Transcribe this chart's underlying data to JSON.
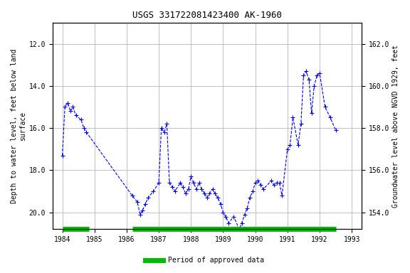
{
  "title": "USGS 331722081423400 AK-1960",
  "ylabel_left": "Depth to water level, feet below land\nsurface",
  "ylabel_right": "Groundwater level above NGVD 1929, feet",
  "ylim_left": [
    20.8,
    11.0
  ],
  "ylim_right": [
    153.2,
    163.0
  ],
  "xlim": [
    1983.7,
    1993.3
  ],
  "yticks_left": [
    12.0,
    14.0,
    16.0,
    18.0,
    20.0
  ],
  "yticks_right": [
    154.0,
    156.0,
    158.0,
    160.0,
    162.0
  ],
  "xticks": [
    1984,
    1985,
    1986,
    1987,
    1988,
    1989,
    1990,
    1991,
    1992,
    1993
  ],
  "background_color": "#ffffff",
  "line_color": "#0000ff",
  "legend_label": "Period of approved data",
  "legend_color": "#00bb00",
  "x_data": [
    1984.0,
    1984.08,
    1984.17,
    1984.25,
    1984.33,
    1984.42,
    1984.58,
    1984.67,
    1984.75,
    1986.17,
    1986.33,
    1986.42,
    1986.5,
    1986.58,
    1986.67,
    1986.83,
    1987.0,
    1987.08,
    1987.17,
    1987.25,
    1987.33,
    1987.42,
    1987.5,
    1987.67,
    1987.75,
    1987.83,
    1987.92,
    1988.0,
    1988.08,
    1988.17,
    1988.25,
    1988.33,
    1988.42,
    1988.5,
    1988.58,
    1988.67,
    1988.75,
    1988.83,
    1988.92,
    1989.0,
    1989.08,
    1989.17,
    1989.33,
    1989.5,
    1989.58,
    1989.67,
    1989.75,
    1989.83,
    1989.92,
    1990.0,
    1990.08,
    1990.17,
    1990.25,
    1990.5,
    1990.58,
    1990.67,
    1990.75,
    1990.83,
    1991.0,
    1991.08,
    1991.17,
    1991.33,
    1991.42,
    1991.5,
    1991.58,
    1991.67,
    1991.75,
    1991.83,
    1991.92,
    1992.0,
    1992.17,
    1992.33,
    1992.5
  ],
  "y_data": [
    17.3,
    15.0,
    14.8,
    15.2,
    15.0,
    15.4,
    15.6,
    16.0,
    16.2,
    19.2,
    19.5,
    20.1,
    19.9,
    19.6,
    19.3,
    19.0,
    18.6,
    16.0,
    16.2,
    15.8,
    18.6,
    18.8,
    19.0,
    18.6,
    18.8,
    19.1,
    18.9,
    18.3,
    18.6,
    18.9,
    18.6,
    18.9,
    19.1,
    19.3,
    19.1,
    18.9,
    19.1,
    19.3,
    19.6,
    20.0,
    20.2,
    20.5,
    20.2,
    20.8,
    20.5,
    20.1,
    19.8,
    19.3,
    19.0,
    18.6,
    18.5,
    18.7,
    18.9,
    18.5,
    18.7,
    18.6,
    18.6,
    19.2,
    17.0,
    16.8,
    15.5,
    16.8,
    15.8,
    13.5,
    13.3,
    13.7,
    15.3,
    14.0,
    13.5,
    13.4,
    15.0,
    15.5,
    16.1
  ],
  "approved_segments": [
    {
      "x_start": 1984.0,
      "x_end": 1984.83
    },
    {
      "x_start": 1986.17,
      "x_end": 1992.5
    }
  ]
}
